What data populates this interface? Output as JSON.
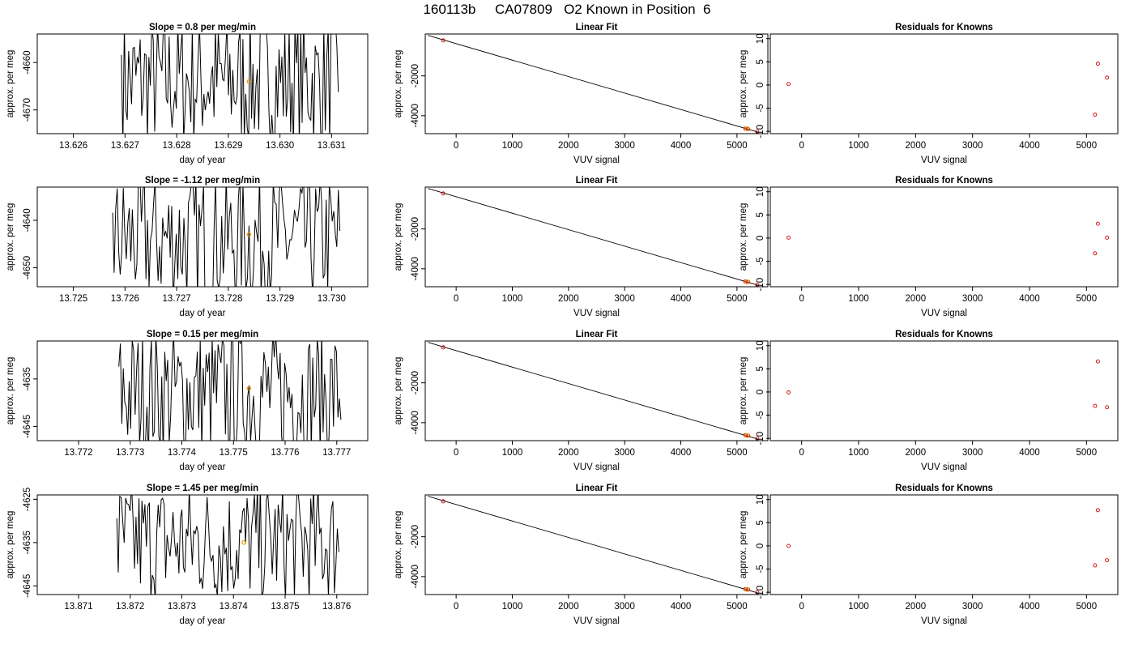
{
  "title": "160113b     CA07809   O2 Known in Position  6",
  "chart_data": [
    {
      "type": "line",
      "title": "Slope =  0.8  per meg/min",
      "xlabel": "day of year",
      "ylabel": "approx. per meg",
      "xlim": [
        13.6253,
        13.6317
      ],
      "ylim": [
        -4675,
        -4654
      ],
      "xticks": [
        "13.626",
        "13.627",
        "13.628",
        "13.629",
        "13.630",
        "13.631"
      ],
      "yticks": [
        "-4660",
        "-4670"
      ],
      "xstart": 13.62693,
      "xend": 13.63113,
      "center": -4664,
      "amplitude": 14,
      "marker": {
        "x": 13.6294,
        "y": -4664
      }
    },
    {
      "type": "scatter",
      "title": "Linear Fit",
      "xlabel": "VUV signal",
      "ylabel": "approx. per meg",
      "xlim": [
        -550,
        5550
      ],
      "ylim": [
        -4900,
        100
      ],
      "xticks": [
        "0",
        "1000",
        "2000",
        "3000",
        "4000",
        "5000"
      ],
      "yticks": [
        "-2000",
        "-4000"
      ],
      "points": [
        {
          "x": -230,
          "y": -220
        },
        {
          "x": 5150,
          "y": -4650
        },
        {
          "x": 5200,
          "y": -4670
        },
        {
          "x": 5360,
          "y": -4800
        }
      ],
      "marker": {
        "x": 5180,
        "y": -4660
      },
      "line": [
        [
          -500,
          30
        ],
        [
          5370,
          -4820
        ]
      ]
    },
    {
      "type": "scatter",
      "title": "Residuals for Knowns",
      "xlabel": "VUV signal",
      "ylabel": "approx. per meg",
      "xlim": [
        -550,
        5550
      ],
      "ylim": [
        -10.5,
        11
      ],
      "xticks": [
        "0",
        "1000",
        "2000",
        "3000",
        "4000",
        "5000"
      ],
      "yticks": [
        "-10",
        "-5",
        "0",
        "5",
        "10"
      ],
      "points": [
        {
          "x": -230,
          "y": 0.2
        },
        {
          "x": 5150,
          "y": -6.4
        },
        {
          "x": 5200,
          "y": 4.6
        },
        {
          "x": 5360,
          "y": 1.6
        }
      ]
    },
    {
      "type": "line",
      "title": "Slope =  -1.12  per meg/min",
      "xlabel": "day of year",
      "ylabel": "approx. per meg",
      "xlim": [
        13.7243,
        13.7307
      ],
      "ylim": [
        -4654,
        -4633
      ],
      "xticks": [
        "13.725",
        "13.726",
        "13.727",
        "13.728",
        "13.729",
        "13.730"
      ],
      "yticks": [
        "-4640",
        "-4650"
      ],
      "xstart": 13.72576,
      "xend": 13.73016,
      "center": -4644,
      "amplitude": 14,
      "marker": {
        "x": 13.7284,
        "y": -4643
      }
    },
    {
      "type": "scatter",
      "title": "Linear Fit",
      "xlabel": "VUV signal",
      "ylabel": "approx. per meg",
      "xlim": [
        -550,
        5550
      ],
      "ylim": [
        -4900,
        100
      ],
      "xticks": [
        "0",
        "1000",
        "2000",
        "3000",
        "4000",
        "5000"
      ],
      "yticks": [
        "-2000",
        "-4000"
      ],
      "points": [
        {
          "x": -230,
          "y": -220
        },
        {
          "x": 5150,
          "y": -4640
        },
        {
          "x": 5200,
          "y": -4660
        },
        {
          "x": 5360,
          "y": -4800
        }
      ],
      "marker": {
        "x": 5180,
        "y": -4650
      },
      "line": [
        [
          -500,
          30
        ],
        [
          5370,
          -4820
        ]
      ]
    },
    {
      "type": "scatter",
      "title": "Residuals for Knowns",
      "xlabel": "VUV signal",
      "ylabel": "approx. per meg",
      "xlim": [
        -550,
        5550
      ],
      "ylim": [
        -10.5,
        11
      ],
      "xticks": [
        "0",
        "1000",
        "2000",
        "3000",
        "4000",
        "5000"
      ],
      "yticks": [
        "-10",
        "-5",
        "0",
        "5",
        "10"
      ],
      "points": [
        {
          "x": -230,
          "y": 0.1
        },
        {
          "x": 5150,
          "y": -3.3
        },
        {
          "x": 5200,
          "y": 3.1
        },
        {
          "x": 5360,
          "y": 0.1
        }
      ]
    },
    {
      "type": "line",
      "title": "Slope =  0.15  per meg/min",
      "xlabel": "day of year",
      "ylabel": "approx. per meg",
      "xlim": [
        13.7712,
        13.7776
      ],
      "ylim": [
        -4648,
        -4627
      ],
      "xticks": [
        "13.772",
        "13.773",
        "13.774",
        "13.775",
        "13.776",
        "13.777"
      ],
      "yticks": [
        "-4635",
        "-4645"
      ],
      "xstart": 13.77278,
      "xend": 13.77708,
      "center": -4638,
      "amplitude": 14,
      "marker": {
        "x": 13.7753,
        "y": -4637
      }
    },
    {
      "type": "scatter",
      "title": "Linear Fit",
      "xlabel": "VUV signal",
      "ylabel": "approx. per meg",
      "xlim": [
        -550,
        5550
      ],
      "ylim": [
        -4900,
        100
      ],
      "xticks": [
        "0",
        "1000",
        "2000",
        "3000",
        "4000",
        "5000"
      ],
      "yticks": [
        "-2000",
        "-4000"
      ],
      "points": [
        {
          "x": -230,
          "y": -220
        },
        {
          "x": 5150,
          "y": -4630
        },
        {
          "x": 5200,
          "y": -4650
        },
        {
          "x": 5360,
          "y": -4790
        }
      ],
      "marker": {
        "x": 5180,
        "y": -4640
      },
      "line": [
        [
          -500,
          30
        ],
        [
          5370,
          -4820
        ]
      ]
    },
    {
      "type": "scatter",
      "title": "Residuals for Knowns",
      "xlabel": "VUV signal",
      "ylabel": "approx. per meg",
      "xlim": [
        -550,
        5550
      ],
      "ylim": [
        -10.5,
        11
      ],
      "xticks": [
        "0",
        "1000",
        "2000",
        "3000",
        "4000",
        "5000"
      ],
      "yticks": [
        "-10",
        "-5",
        "0",
        "5",
        "10"
      ],
      "points": [
        {
          "x": -230,
          "y": -0.1
        },
        {
          "x": 5150,
          "y": -3.0
        },
        {
          "x": 5200,
          "y": 6.6
        },
        {
          "x": 5360,
          "y": -3.3
        }
      ]
    },
    {
      "type": "line",
      "title": "Slope =  1.45  per meg/min",
      "xlabel": "day of year",
      "ylabel": "approx. per meg",
      "xlim": [
        13.8702,
        13.8766
      ],
      "ylim": [
        -4647,
        -4624
      ],
      "xticks": [
        "13.871",
        "13.872",
        "13.873",
        "13.874",
        "13.875",
        "13.876"
      ],
      "yticks": [
        "-4625",
        "-4635",
        "-4645"
      ],
      "xstart": 13.87174,
      "xend": 13.87604,
      "center": -4635,
      "amplitude": 14,
      "marker": {
        "x": 13.8742,
        "y": -4635
      }
    },
    {
      "type": "scatter",
      "title": "Linear Fit",
      "xlabel": "VUV signal",
      "ylabel": "approx. per meg",
      "xlim": [
        -550,
        5550
      ],
      "ylim": [
        -4900,
        100
      ],
      "xticks": [
        "0",
        "1000",
        "2000",
        "3000",
        "4000",
        "5000"
      ],
      "yticks": [
        "-2000",
        "-4000"
      ],
      "points": [
        {
          "x": -230,
          "y": -220
        },
        {
          "x": 5150,
          "y": -4630
        },
        {
          "x": 5200,
          "y": -4650
        },
        {
          "x": 5360,
          "y": -4790
        }
      ],
      "marker": {
        "x": 5180,
        "y": -4640
      },
      "line": [
        [
          -500,
          30
        ],
        [
          5370,
          -4820
        ]
      ]
    },
    {
      "type": "scatter",
      "title": "Residuals for Knowns",
      "xlabel": "VUV signal",
      "ylabel": "approx. per meg",
      "xlim": [
        -550,
        5550
      ],
      "ylim": [
        -10.5,
        11
      ],
      "xticks": [
        "0",
        "1000",
        "2000",
        "3000",
        "4000",
        "5000"
      ],
      "yticks": [
        "-10",
        "-5",
        "0",
        "5",
        "10"
      ],
      "points": [
        {
          "x": -230,
          "y": 0.0
        },
        {
          "x": 5150,
          "y": -4.2
        },
        {
          "x": 5200,
          "y": 7.7
        },
        {
          "x": 5360,
          "y": -3.1
        }
      ]
    }
  ],
  "colors": {
    "trace": "#000000",
    "points": "#cc0000",
    "marker": "#e69500",
    "axes": "#000000"
  }
}
